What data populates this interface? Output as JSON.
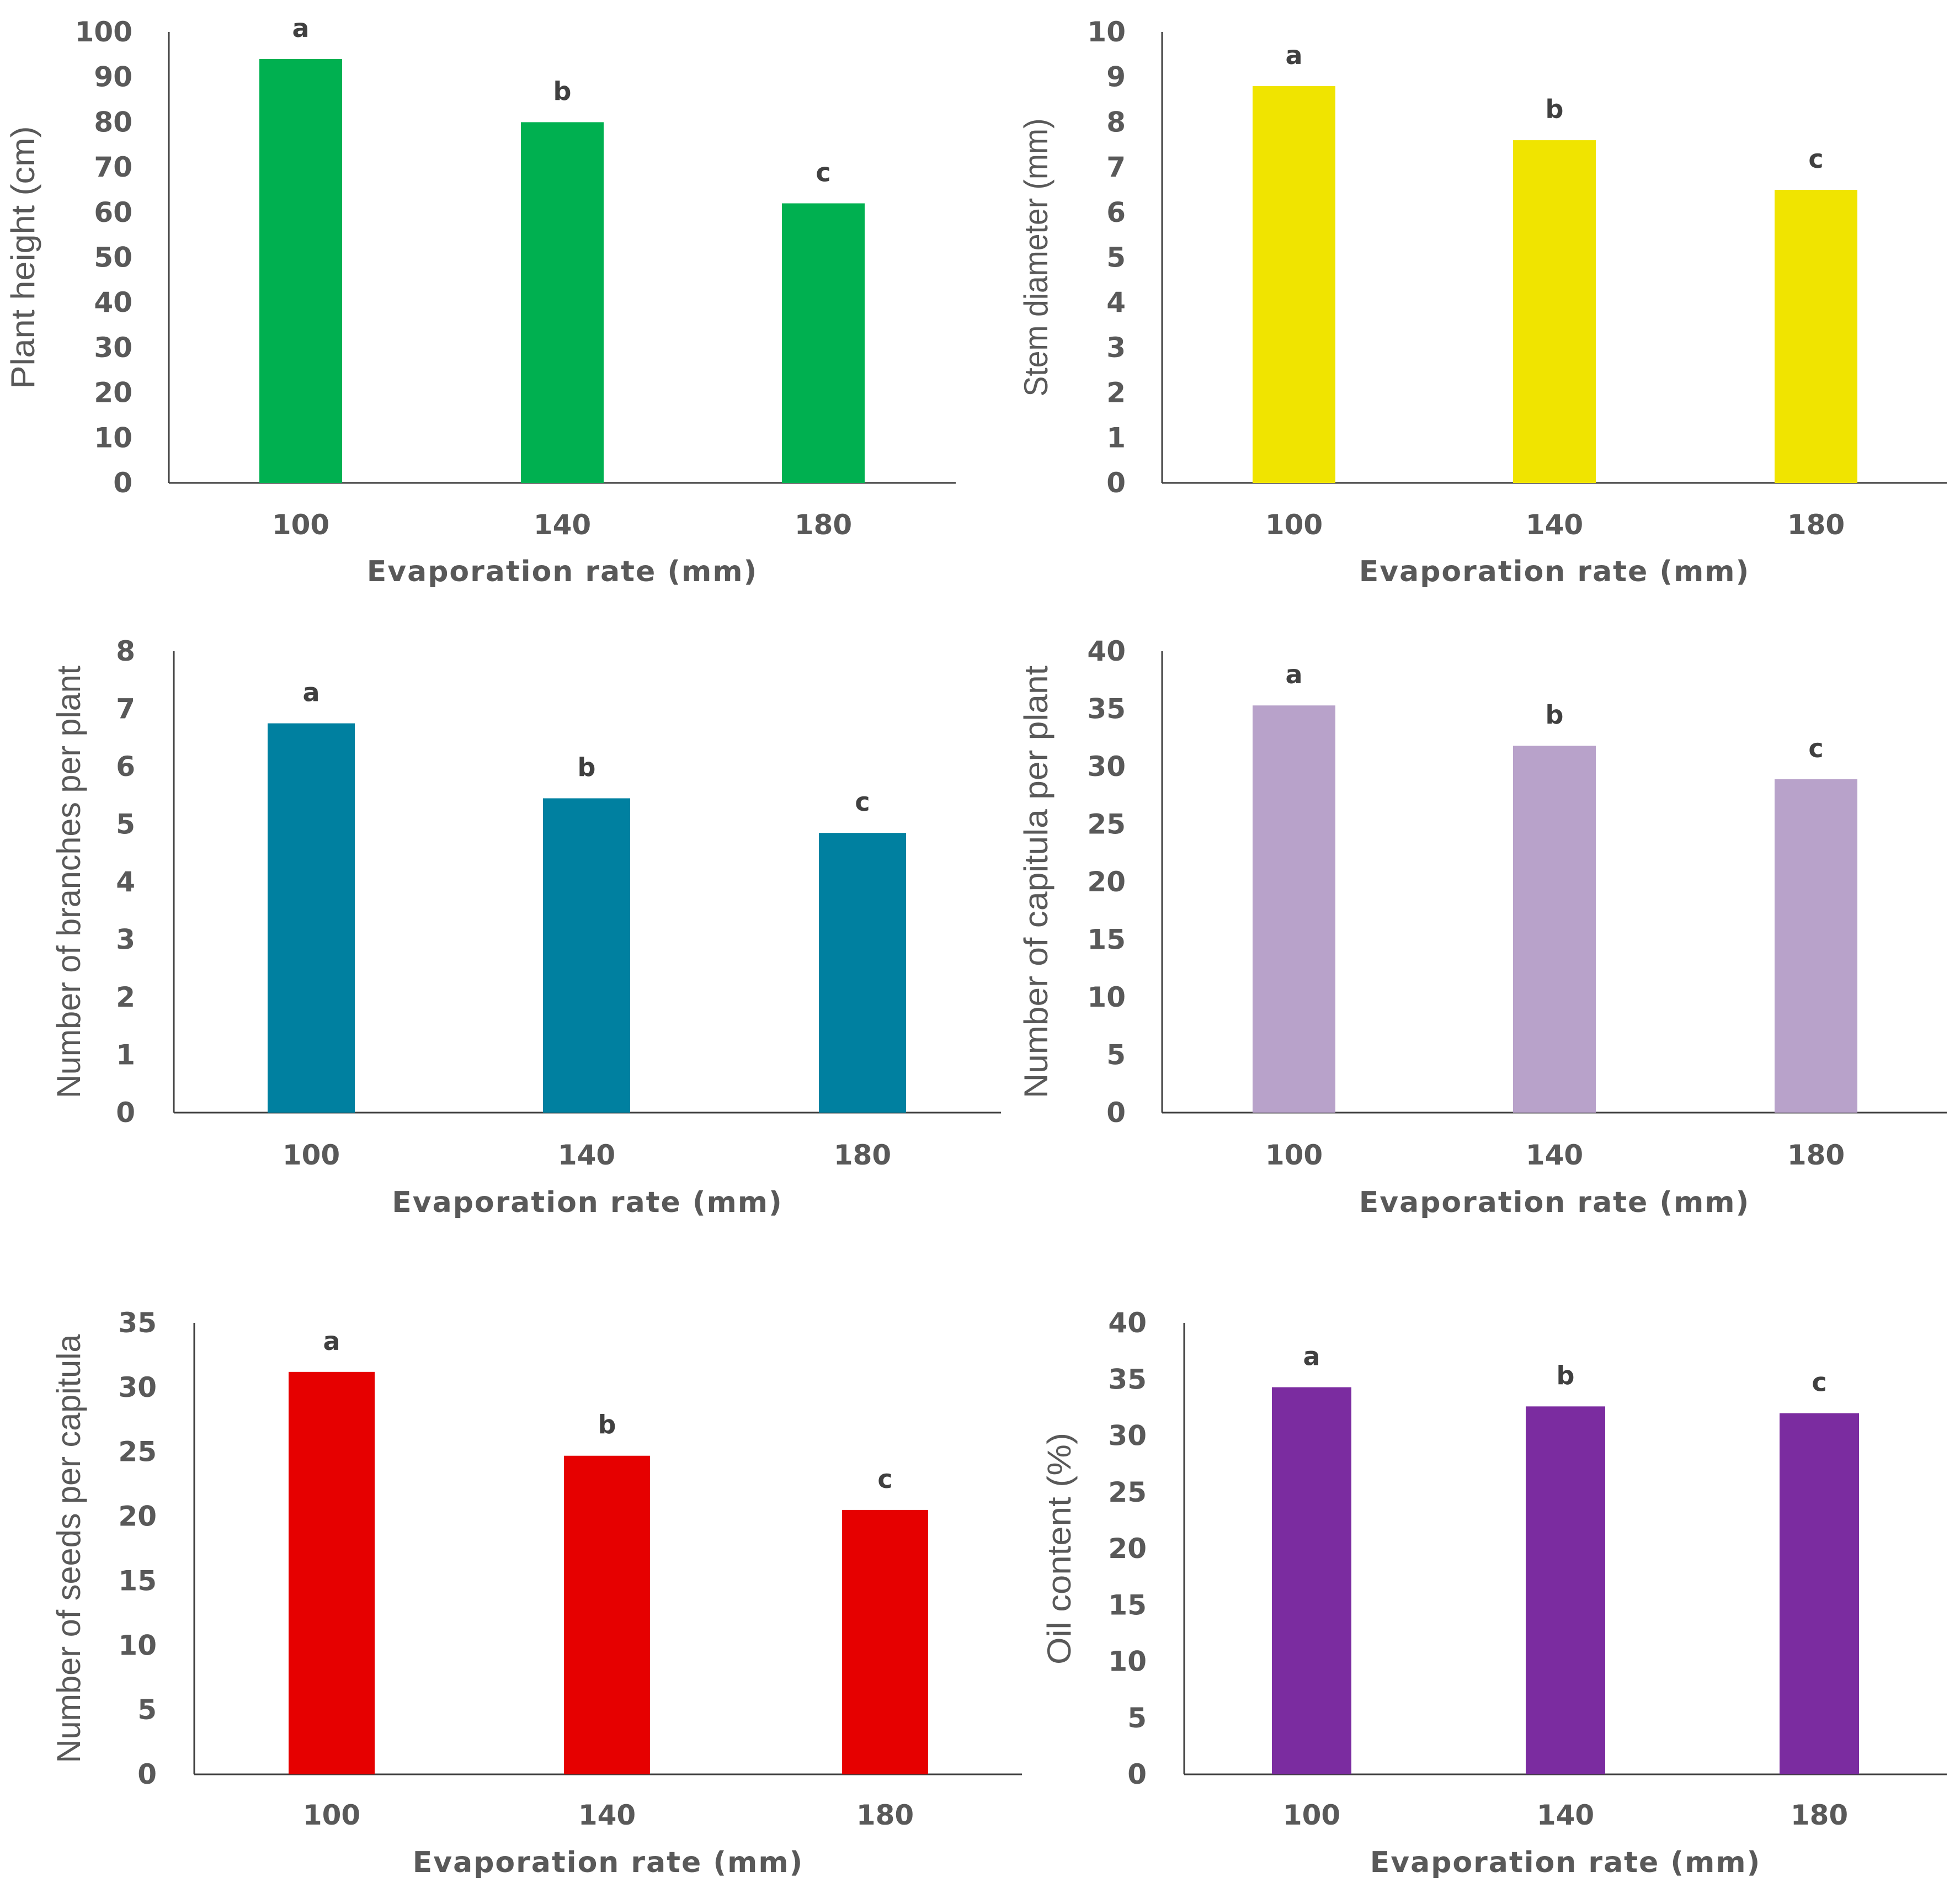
{
  "chart_data": [
    {
      "type": "bar",
      "categories": [
        "100",
        "140",
        "180"
      ],
      "values": [
        94,
        80,
        62
      ],
      "labels": [
        "a",
        "b",
        "c"
      ],
      "xlabel": "Evaporation rate (mm)",
      "ylabel": "Plant height (cm)",
      "ylim": [
        0,
        100
      ],
      "yticks": [
        0,
        10,
        20,
        30,
        40,
        50,
        60,
        70,
        80,
        90,
        100
      ],
      "color": "#00B050",
      "grid": false
    },
    {
      "type": "bar",
      "categories": [
        "100",
        "140",
        "180"
      ],
      "values": [
        8.8,
        7.6,
        6.5
      ],
      "labels": [
        "a",
        "b",
        "c"
      ],
      "xlabel": "Evaporation rate (mm)",
      "ylabel": "Stem diameter (mm)",
      "ylim": [
        0,
        10
      ],
      "yticks": [
        0,
        1,
        2,
        3,
        4,
        5,
        6,
        7,
        8,
        9,
        10
      ],
      "color": "#F0E400",
      "grid": false
    },
    {
      "type": "bar",
      "categories": [
        "100",
        "140",
        "180"
      ],
      "values": [
        6.75,
        5.45,
        4.85
      ],
      "labels": [
        "a",
        "b",
        "c"
      ],
      "xlabel": "Evaporation rate (mm)",
      "ylabel": "Number of branches per plant",
      "ylim": [
        0,
        8
      ],
      "yticks": [
        0,
        1,
        2,
        3,
        4,
        5,
        6,
        7,
        8
      ],
      "color": "#0080A0",
      "grid": false
    },
    {
      "type": "bar",
      "categories": [
        "100",
        "140",
        "180"
      ],
      "values": [
        35.3,
        31.8,
        28.9
      ],
      "labels": [
        "a",
        "b",
        "c"
      ],
      "xlabel": "Evaporation rate (mm)",
      "ylabel": "Number of capitula per plant",
      "ylim": [
        0,
        40
      ],
      "yticks": [
        0,
        5,
        10,
        15,
        20,
        25,
        30,
        35,
        40
      ],
      "color": "#B8A2CA",
      "grid": false
    },
    {
      "type": "bar",
      "categories": [
        "100",
        "140",
        "180"
      ],
      "values": [
        31.2,
        24.7,
        20.5
      ],
      "labels": [
        "a",
        "b",
        "c"
      ],
      "xlabel": "Evaporation rate (mm)",
      "ylabel": "Number of seeds per capitula",
      "ylim": [
        0,
        35
      ],
      "yticks": [
        0,
        5,
        10,
        15,
        20,
        25,
        30,
        35
      ],
      "color": "#E60000",
      "grid": false
    },
    {
      "type": "bar",
      "categories": [
        "100",
        "140",
        "180"
      ],
      "values": [
        34.3,
        32.6,
        32
      ],
      "labels": [
        "a",
        "b",
        "c"
      ],
      "xlabel": "Evaporation rate (mm)",
      "ylabel": "Oil content (%)",
      "ylim": [
        0,
        40
      ],
      "yticks": [
        0,
        5,
        10,
        15,
        20,
        25,
        30,
        35,
        40
      ],
      "color": "#7B2CA0",
      "grid": false
    }
  ]
}
